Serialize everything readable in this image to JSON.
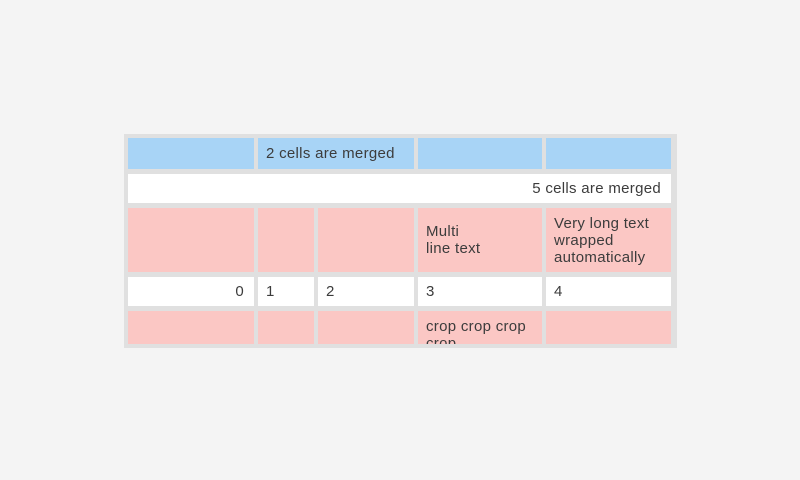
{
  "colors": {
    "page_background": "#f4f4f4",
    "table_frame": "#e0e0e0",
    "cell_blue": "#a8d4f6",
    "cell_pink": "#fbc7c4",
    "cell_white": "#ffffff",
    "text": "#3c3c3c"
  },
  "table": {
    "rows": [
      {
        "cells": [
          {
            "text": ""
          },
          {
            "text": "2 cells are merged"
          },
          {
            "text": ""
          },
          {
            "text": ""
          }
        ]
      },
      {
        "cells": [
          {
            "text": "5 cells are merged"
          }
        ]
      },
      {
        "cells": [
          {
            "text": ""
          },
          {
            "text": ""
          },
          {
            "text": ""
          },
          {
            "text": "Multi\nline text"
          },
          {
            "text": "Very long text wrapped automatically"
          }
        ]
      },
      {
        "cells": [
          {
            "text": "0"
          },
          {
            "text": "1"
          },
          {
            "text": "2"
          },
          {
            "text": "3"
          },
          {
            "text": "4"
          }
        ]
      },
      {
        "cells": [
          {
            "text": ""
          },
          {
            "text": ""
          },
          {
            "text": ""
          },
          {
            "text": "crop crop crop crop"
          },
          {
            "text": ""
          }
        ]
      }
    ]
  }
}
